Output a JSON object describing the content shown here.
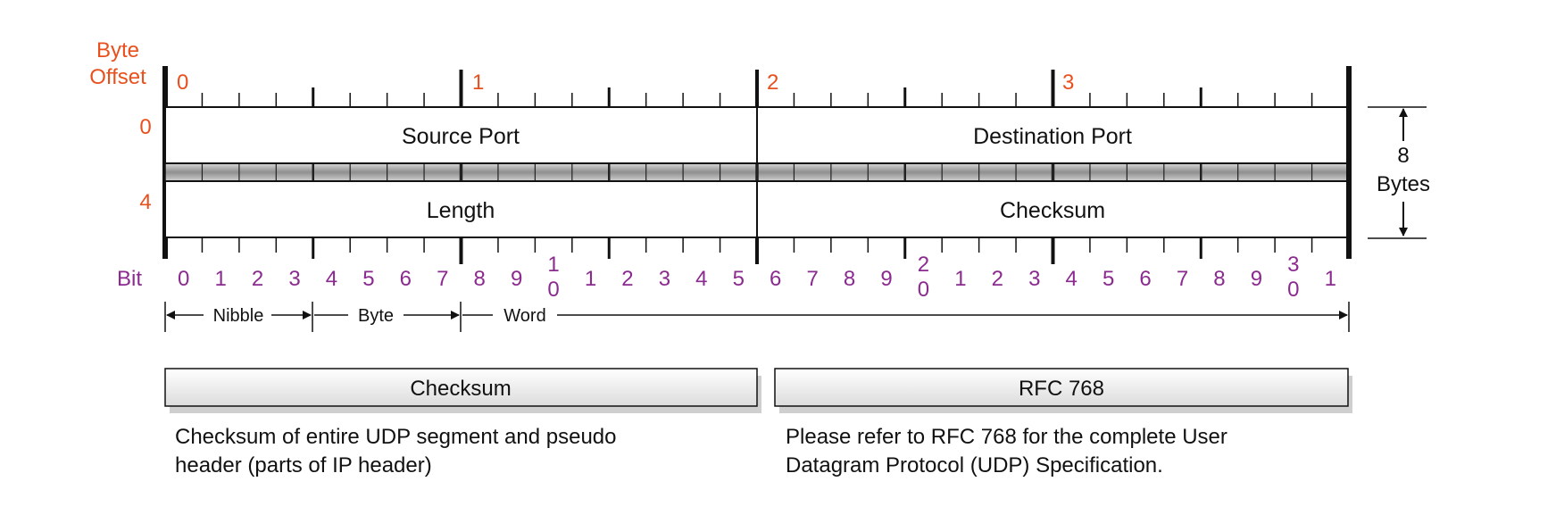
{
  "header": {
    "byte_offset_label": [
      "Byte",
      "Offset"
    ],
    "byte_markers": [
      "0",
      "1",
      "2",
      "3"
    ]
  },
  "rows": [
    {
      "offset": "0",
      "fields": [
        "Source Port",
        "Destination Port"
      ]
    },
    {
      "offset": "4",
      "fields": [
        "Length",
        "Checksum"
      ]
    }
  ],
  "size_indicator": {
    "value": "8",
    "unit": "Bytes"
  },
  "bit_row": {
    "label": "Bit",
    "bits": [
      [
        "0"
      ],
      [
        "1"
      ],
      [
        "2"
      ],
      [
        "3"
      ],
      [
        "4"
      ],
      [
        "5"
      ],
      [
        "6"
      ],
      [
        "7"
      ],
      [
        "8"
      ],
      [
        "9"
      ],
      [
        "1",
        "0"
      ],
      [
        "1"
      ],
      [
        "2"
      ],
      [
        "3"
      ],
      [
        "4"
      ],
      [
        "5"
      ],
      [
        "6"
      ],
      [
        "7"
      ],
      [
        "8"
      ],
      [
        "9"
      ],
      [
        "2",
        "0"
      ],
      [
        "1"
      ],
      [
        "2"
      ],
      [
        "3"
      ],
      [
        "4"
      ],
      [
        "5"
      ],
      [
        "6"
      ],
      [
        "7"
      ],
      [
        "8"
      ],
      [
        "9"
      ],
      [
        "3",
        "0"
      ],
      [
        "1"
      ]
    ]
  },
  "scale": {
    "nibble_label": "Nibble",
    "byte_label": "Byte",
    "word_label": "Word"
  },
  "notes": [
    {
      "title": "Checksum",
      "text": "Checksum of entire UDP segment and pseudo\nheader (parts of IP header)"
    },
    {
      "title": "RFC 768",
      "text": "Please refer to RFC 768 for the complete User\nDatagram Protocol (UDP) Specification."
    }
  ],
  "colors": {
    "offset_labels": "#e8501e",
    "bit_labels": "#8b2a8f",
    "outline": "#111111",
    "separator_band": "#9a9a9a"
  }
}
